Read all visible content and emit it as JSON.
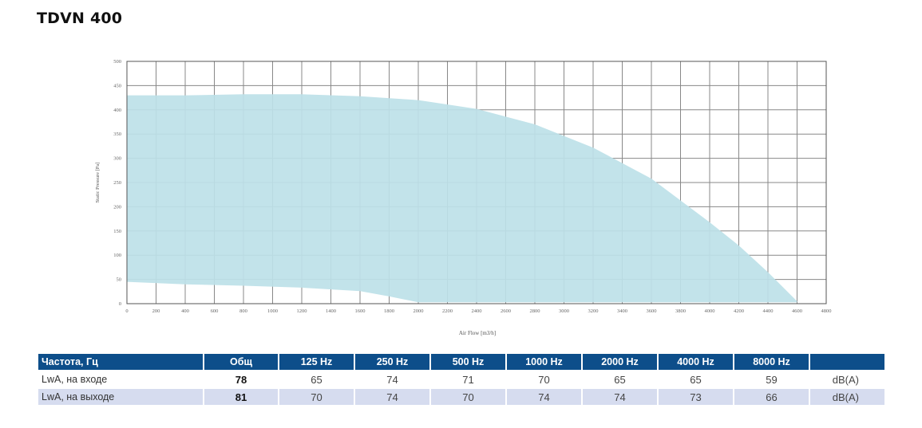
{
  "page_title": "TDVN 400",
  "chart_data": {
    "type": "area",
    "title": "",
    "xlabel": "Air Flow [m3/h]",
    "ylabel": "Static Pressure [Pa]",
    "xlim": [
      0,
      4800
    ],
    "ylim": [
      0,
      500
    ],
    "x_ticks": [
      0,
      200,
      400,
      600,
      800,
      1000,
      1200,
      1400,
      1600,
      1800,
      2000,
      2200,
      2400,
      2600,
      2800,
      3000,
      3200,
      3400,
      3600,
      3800,
      4000,
      4200,
      4400,
      4600,
      4800
    ],
    "y_ticks": [
      0,
      50,
      100,
      150,
      200,
      250,
      300,
      350,
      400,
      450,
      500
    ],
    "grid": true,
    "fill_color": "#bde1e8",
    "series": [
      {
        "upper": {
          "x": [
            0,
            400,
            800,
            1200,
            1600,
            2000,
            2400,
            2800,
            3200,
            3600,
            4000,
            4200,
            4400,
            4600
          ],
          "y": [
            430,
            430,
            432,
            432,
            428,
            420,
            402,
            370,
            322,
            258,
            168,
            120,
            65,
            5
          ]
        },
        "lower": {
          "x": [
            0,
            400,
            800,
            1200,
            1600,
            1800,
            2000,
            4600
          ],
          "y": [
            45,
            40,
            37,
            33,
            26,
            15,
            3,
            3
          ]
        }
      }
    ]
  },
  "table": {
    "header": [
      "Частота, Гц",
      "Общ",
      "125 Hz",
      "250 Hz",
      "500 Hz",
      "1000 Hz",
      "2000 Hz",
      "4000 Hz",
      "8000 Hz",
      ""
    ],
    "rows": [
      {
        "label": "LwA, на входе",
        "total": "78",
        "values": [
          "65",
          "74",
          "71",
          "70",
          "65",
          "65",
          "59"
        ],
        "unit": "dB(A)"
      },
      {
        "label": "LwA, на выходе",
        "total": "81",
        "values": [
          "70",
          "74",
          "70",
          "74",
          "74",
          "73",
          "66"
        ],
        "unit": "dB(A)"
      }
    ]
  }
}
